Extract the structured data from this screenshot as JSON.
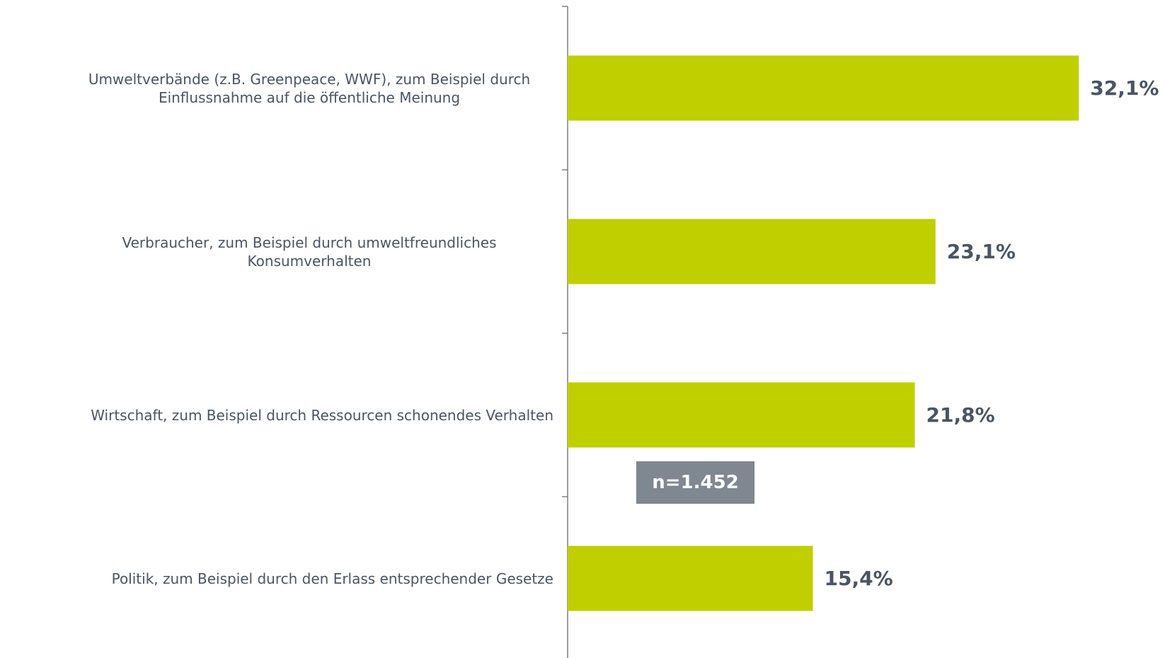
{
  "chart_data": {
    "type": "bar",
    "orientation": "horizontal",
    "categories": [
      "Umweltverbände (z.B. Greenpeace, WWF), zum Beispiel durch Einflussnahme auf die öffentliche Meinung",
      "Verbraucher, zum Beispiel durch umweltfreundliches Konsumverhalten",
      "Wirtschaft, zum Beispiel durch Ressourcen schonendes Verhalten",
      "Politik, zum Beispiel durch den Erlass entsprechender Gesetze"
    ],
    "values": [
      32.1,
      23.1,
      21.8,
      15.4
    ],
    "value_labels": [
      "32,1%",
      "23,1%",
      "21,8%",
      "15,4%"
    ],
    "color": "#bfcf00",
    "annotation": "n=1.452"
  }
}
